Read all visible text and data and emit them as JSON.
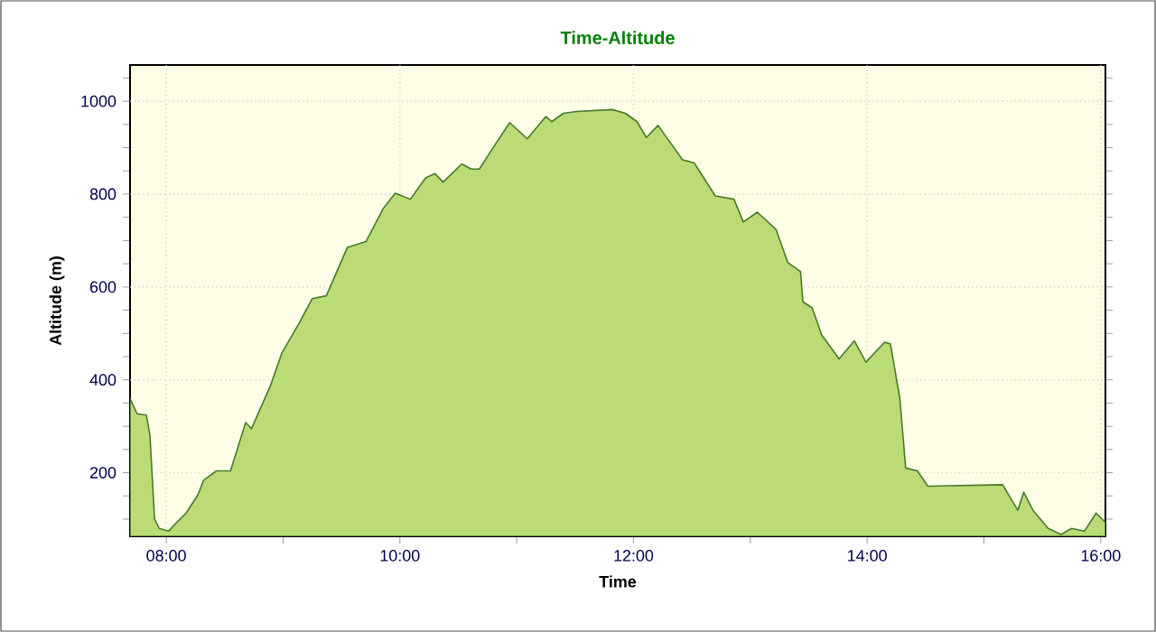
{
  "chart_data": {
    "type": "area",
    "title": "Time-Altitude",
    "xlabel": "Time",
    "ylabel": "Altitude (m)",
    "xlim": [
      7.69,
      16.04
    ],
    "ylim": [
      63,
      1078
    ],
    "xticks": [
      {
        "value": 8,
        "label": "08:00"
      },
      {
        "value": 9,
        "label": null
      },
      {
        "value": 10,
        "label": "10:00"
      },
      {
        "value": 11,
        "label": null
      },
      {
        "value": 12,
        "label": "12:00"
      },
      {
        "value": 13,
        "label": null
      },
      {
        "value": 14,
        "label": "14:00"
      },
      {
        "value": 15,
        "label": null
      },
      {
        "value": 16,
        "label": "16:00"
      }
    ],
    "yticks": [
      {
        "value": 100,
        "label": null
      },
      {
        "value": 150,
        "label": null
      },
      200,
      {
        "value": 250,
        "label": null
      },
      {
        "value": 300,
        "label": null
      },
      {
        "value": 350,
        "label": null
      },
      400,
      {
        "value": 450,
        "label": null
      },
      {
        "value": 500,
        "label": null
      },
      {
        "value": 550,
        "label": null
      },
      600,
      {
        "value": 650,
        "label": null
      },
      {
        "value": 700,
        "label": null
      },
      {
        "value": 750,
        "label": null
      },
      800,
      {
        "value": 850,
        "label": null
      },
      {
        "value": 900,
        "label": null
      },
      {
        "value": 950,
        "label": null
      },
      1000,
      {
        "value": 1050,
        "label": null
      }
    ],
    "grid": true,
    "series": [
      {
        "color": "#badb76",
        "x": [
          7.69,
          7.75,
          7.83,
          7.86,
          7.9,
          7.94,
          8.02,
          8.09,
          8.17,
          8.27,
          8.32,
          8.43,
          8.55,
          8.68,
          8.73,
          8.89,
          8.99,
          9.14,
          9.25,
          9.37,
          9.55,
          9.71,
          9.86,
          9.96,
          10.09,
          10.22,
          10.3,
          10.37,
          10.53,
          10.61,
          10.68,
          10.78,
          10.94,
          11.09,
          11.25,
          11.3,
          11.4,
          11.51,
          11.82,
          11.93,
          12.03,
          12.11,
          12.21,
          12.42,
          12.52,
          12.7,
          12.86,
          12.94,
          13.06,
          13.22,
          13.32,
          13.43,
          13.45,
          13.53,
          13.61,
          13.76,
          13.89,
          13.99,
          14.15,
          14.2,
          14.28,
          14.33,
          14.43,
          14.52,
          15.16,
          15.29,
          15.34,
          15.42,
          15.55,
          15.66,
          15.75,
          15.86,
          15.96,
          16.04
        ],
        "values": [
          360,
          327,
          324,
          282,
          100,
          80,
          74,
          93,
          113,
          152,
          184,
          204,
          204,
          308,
          295,
          386,
          458,
          523,
          575,
          581,
          685,
          698,
          770,
          802,
          789,
          835,
          844,
          826,
          865,
          854,
          854,
          893,
          954,
          919,
          967,
          956,
          974,
          978,
          982,
          974,
          956,
          922,
          948,
          874,
          867,
          796,
          789,
          740,
          761,
          724,
          653,
          633,
          568,
          555,
          497,
          445,
          484,
          438,
          481,
          477,
          360,
          210,
          204,
          171,
          174,
          119,
          158,
          119,
          80,
          67,
          80,
          74,
          113,
          93
        ]
      }
    ]
  }
}
